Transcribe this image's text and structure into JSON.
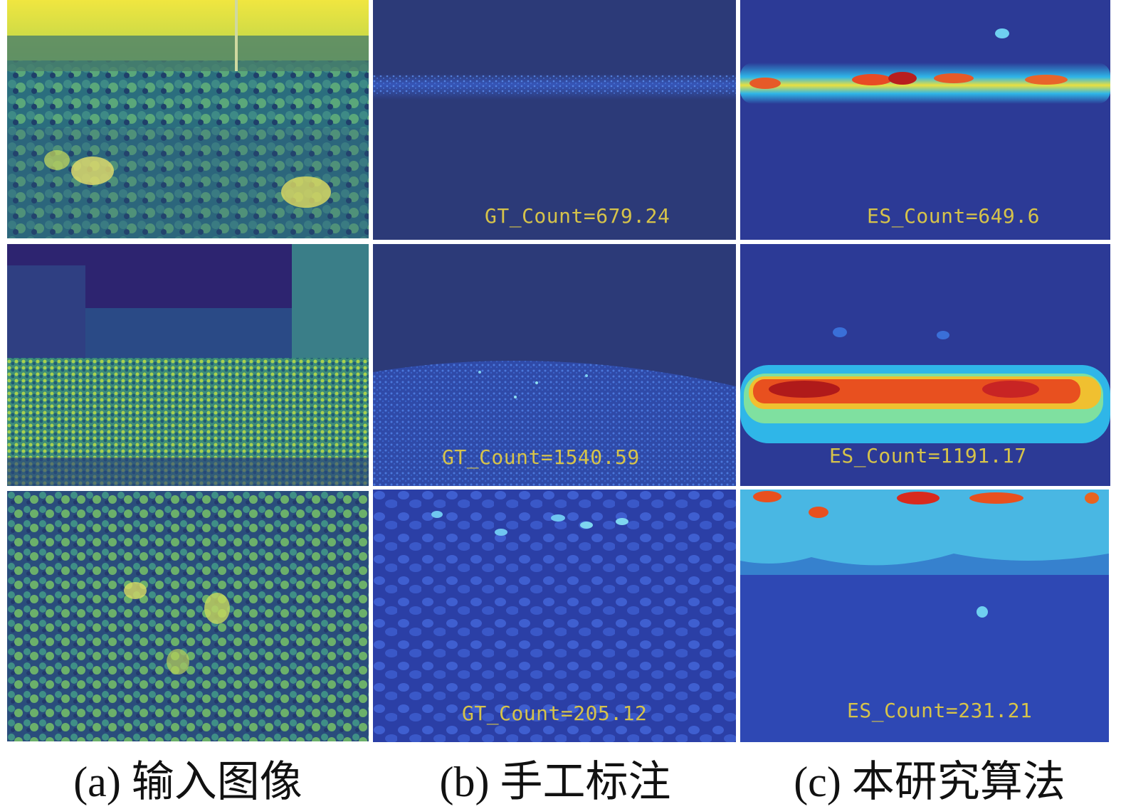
{
  "panels": {
    "r1": {
      "gt": "GT_Count=679.24",
      "es": "ES_Count=649.6"
    },
    "r2": {
      "gt": "GT_Count=1540.59",
      "es": "ES_Count=1191.17"
    },
    "r3": {
      "gt": "GT_Count=205.12",
      "es": "ES_Count=231.21"
    }
  },
  "captions": {
    "a": "(a) 输入图像",
    "b": "(b) 手工标注",
    "c": "(c) 本研究算法"
  },
  "colors": {
    "density_bg": "#2c3a78",
    "count_text": "#d6c34a"
  }
}
